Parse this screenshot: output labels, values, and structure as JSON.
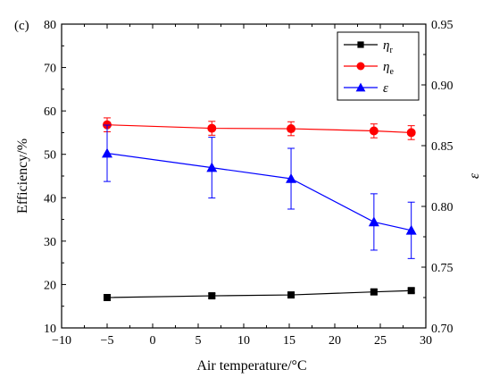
{
  "chart_data": {
    "type": "line",
    "panel_label": "(c)",
    "title": "",
    "xlabel": "Air temperature/°C",
    "ylabel": "Efficiency/%",
    "y2label": "ε",
    "xlim": [
      -10,
      30
    ],
    "ylim": [
      10,
      80
    ],
    "y2lim": [
      0.7,
      0.95
    ],
    "xticks": [
      -10,
      -5,
      0,
      5,
      10,
      15,
      20,
      25,
      30
    ],
    "yticks": [
      10,
      20,
      30,
      40,
      50,
      60,
      70,
      80
    ],
    "y2ticks": [
      "0.70",
      "0.75",
      "0.80",
      "0.85",
      "0.90",
      "0.95"
    ],
    "grid": false,
    "legend_position": "top-right",
    "x": [
      -5,
      6.5,
      15.2,
      24.3,
      28.4
    ],
    "series": [
      {
        "name": "η_r",
        "legend_main": "η",
        "legend_sub": "r",
        "axis": "left",
        "marker": "square",
        "color": "#000000",
        "values": [
          17.0,
          17.4,
          17.6,
          18.3,
          18.6
        ],
        "errors": [
          0.5,
          0.5,
          0.5,
          0.5,
          0.5
        ]
      },
      {
        "name": "η_e",
        "legend_main": "η",
        "legend_sub": "e",
        "axis": "left",
        "marker": "circle",
        "color": "#ff0000",
        "values": [
          56.8,
          56.0,
          55.9,
          55.4,
          55.0
        ],
        "errors": [
          1.6,
          1.6,
          1.6,
          1.6,
          1.6
        ]
      },
      {
        "name": "ε",
        "legend_main": "ε",
        "legend_sub": "",
        "axis": "right",
        "marker": "triangle",
        "color": "#0000ff",
        "values": [
          0.8437,
          0.8319,
          0.8228,
          0.7872,
          0.7803
        ],
        "errors": [
          0.0232,
          0.025,
          0.025,
          0.0232,
          0.0232
        ]
      }
    ]
  }
}
